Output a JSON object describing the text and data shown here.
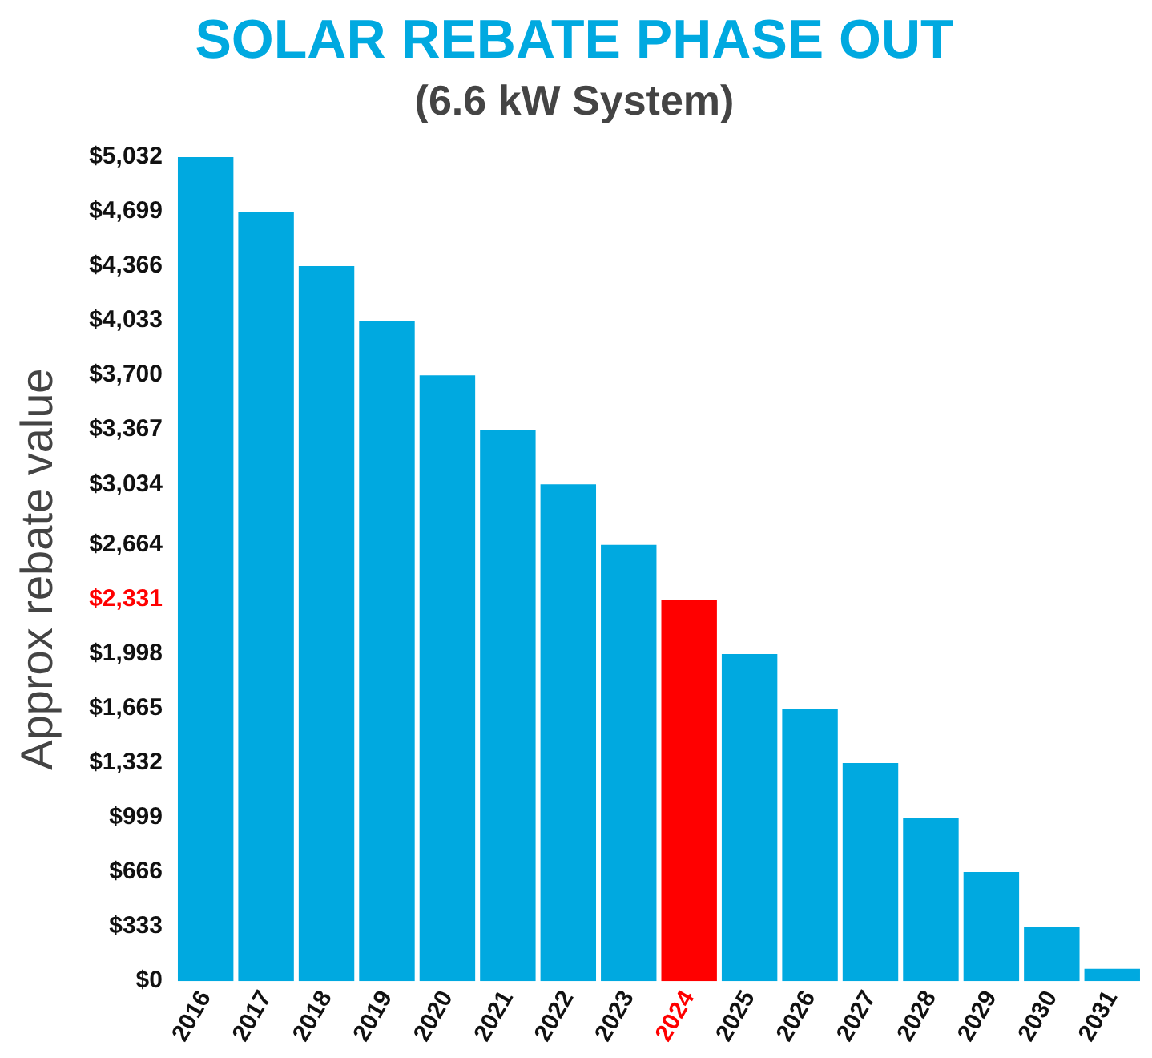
{
  "chart_data": {
    "type": "bar",
    "title": "SOLAR REBATE PHASE OUT",
    "subtitle": "(6.6 kW System)",
    "ylabel": "Approx rebate value",
    "categories": [
      "2016",
      "2017",
      "2018",
      "2019",
      "2020",
      "2021",
      "2022",
      "2023",
      "2024",
      "2025",
      "2026",
      "2027",
      "2028",
      "2029",
      "2030",
      "2031"
    ],
    "values": [
      5032,
      4699,
      4366,
      4033,
      3700,
      3367,
      3034,
      2664,
      2331,
      1998,
      1665,
      1332,
      999,
      666,
      333,
      76
    ],
    "colors": [
      "#00a9e0",
      "#00a9e0",
      "#00a9e0",
      "#00a9e0",
      "#00a9e0",
      "#00a9e0",
      "#00a9e0",
      "#00a9e0",
      "#ff0000",
      "#00a9e0",
      "#00a9e0",
      "#00a9e0",
      "#00a9e0",
      "#00a9e0",
      "#00a9e0",
      "#00a9e0"
    ],
    "ylim": [
      0,
      5032
    ],
    "yticks": [
      {
        "value": 0,
        "label": "$0"
      },
      {
        "value": 333,
        "label": "$333"
      },
      {
        "value": 666,
        "label": "$666"
      },
      {
        "value": 999,
        "label": "$999"
      },
      {
        "value": 1332,
        "label": "$1,332"
      },
      {
        "value": 1665,
        "label": "$1,665"
      },
      {
        "value": 1998,
        "label": "$1,998"
      },
      {
        "value": 2331,
        "label": "$2,331"
      },
      {
        "value": 2664,
        "label": "$2,664"
      },
      {
        "value": 3034,
        "label": "$3,034"
      },
      {
        "value": 3367,
        "label": "$3,367"
      },
      {
        "value": 3700,
        "label": "$3,700"
      },
      {
        "value": 4033,
        "label": "$4,033"
      },
      {
        "value": 4366,
        "label": "$4,366"
      },
      {
        "value": 4699,
        "label": "$4,699"
      },
      {
        "value": 5032,
        "label": "$5,032"
      }
    ],
    "grid": false,
    "legend": false
  }
}
